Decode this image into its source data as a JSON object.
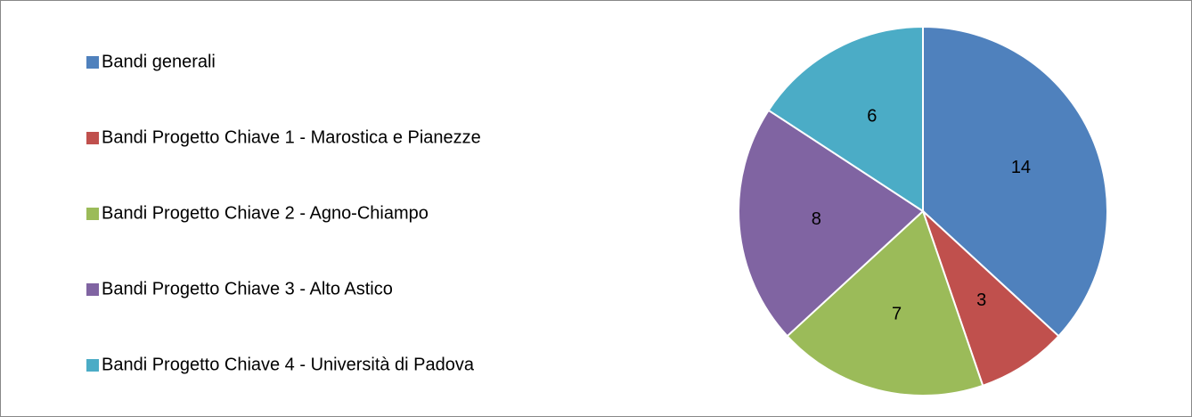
{
  "chart_data": {
    "type": "pie",
    "categories": [
      "Bandi generali",
      "Bandi Progetto Chiave 1 - Marostica e Pianezze",
      "Bandi Progetto Chiave 2 - Agno-Chiampo",
      "Bandi Progetto Chiave 3 - Alto Astico",
      "Bandi Progetto Chiave 4 - Università di Padova"
    ],
    "values": [
      14,
      3,
      7,
      8,
      6
    ],
    "colors": [
      "#4f81bd",
      "#c0504d",
      "#9bbb59",
      "#8064a2",
      "#4bacc6"
    ],
    "legend": "left"
  }
}
